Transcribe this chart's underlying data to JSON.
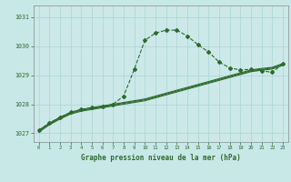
{
  "bg_color": "#c8e8e8",
  "plot_bg_color": "#cce8e8",
  "grid_color": "#aad4d4",
  "line_color": "#2d6b2d",
  "title": "Graphe pression niveau de la mer (hPa)",
  "xlim": [
    -0.5,
    23.5
  ],
  "ylim": [
    1026.7,
    1031.4
  ],
  "yticks": [
    1027,
    1028,
    1029,
    1030,
    1031
  ],
  "xticks": [
    0,
    1,
    2,
    3,
    4,
    5,
    6,
    7,
    8,
    9,
    10,
    11,
    12,
    13,
    14,
    15,
    16,
    17,
    18,
    19,
    20,
    21,
    22,
    23
  ],
  "s1_x": [
    0,
    1,
    2,
    3,
    4,
    5,
    6,
    7,
    8,
    9,
    10,
    11,
    12,
    13,
    14,
    15,
    16,
    17,
    18,
    19,
    20,
    21,
    22,
    23
  ],
  "s1_y": [
    1027.1,
    1027.35,
    1027.55,
    1027.72,
    1027.82,
    1027.88,
    1027.92,
    1028.0,
    1028.28,
    1029.2,
    1030.2,
    1030.45,
    1030.55,
    1030.55,
    1030.35,
    1030.05,
    1029.8,
    1029.45,
    1029.25,
    1029.18,
    1029.2,
    1029.15,
    1029.1,
    1029.38
  ],
  "s2_x": [
    0,
    1,
    2,
    3,
    4,
    5,
    6,
    7,
    8,
    9,
    10,
    11,
    12,
    13,
    14,
    15,
    16,
    17,
    18,
    19,
    20,
    21,
    22,
    23
  ],
  "s2_y": [
    1027.1,
    1027.35,
    1027.55,
    1027.72,
    1027.82,
    1027.88,
    1027.94,
    1028.0,
    1028.06,
    1028.12,
    1028.18,
    1028.28,
    1028.38,
    1028.48,
    1028.58,
    1028.68,
    1028.78,
    1028.88,
    1028.98,
    1029.08,
    1029.18,
    1029.23,
    1029.27,
    1029.4
  ],
  "s3_x": [
    0,
    1,
    2,
    3,
    4,
    5,
    6,
    7,
    8,
    9,
    10,
    11,
    12,
    13,
    14,
    15,
    16,
    17,
    18,
    19,
    20,
    21,
    22,
    23
  ],
  "s3_y": [
    1027.07,
    1027.32,
    1027.52,
    1027.69,
    1027.79,
    1027.85,
    1027.91,
    1027.97,
    1028.03,
    1028.09,
    1028.15,
    1028.25,
    1028.35,
    1028.45,
    1028.55,
    1028.65,
    1028.75,
    1028.85,
    1028.95,
    1029.05,
    1029.15,
    1029.2,
    1029.24,
    1029.37
  ],
  "s4_x": [
    0,
    1,
    2,
    3,
    4,
    5,
    6,
    7,
    8,
    9,
    10,
    11,
    12,
    13,
    14,
    15,
    16,
    17,
    18,
    19,
    20,
    21,
    22,
    23
  ],
  "s4_y": [
    1027.04,
    1027.29,
    1027.49,
    1027.66,
    1027.76,
    1027.82,
    1027.88,
    1027.94,
    1028.0,
    1028.06,
    1028.12,
    1028.22,
    1028.32,
    1028.42,
    1028.52,
    1028.62,
    1028.72,
    1028.82,
    1028.92,
    1029.02,
    1029.12,
    1029.17,
    1029.21,
    1029.34
  ]
}
